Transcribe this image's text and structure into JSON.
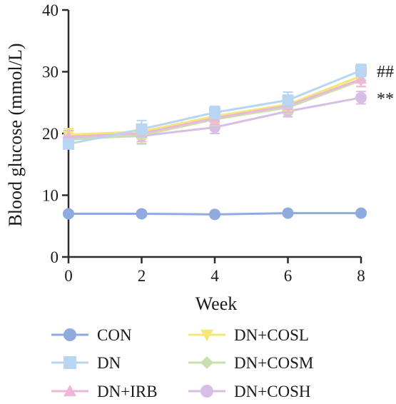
{
  "chart_data": {
    "type": "line",
    "xlabel": "Week",
    "ylabel": "Blood glucose (mmol/L)",
    "x": [
      0,
      2,
      4,
      6,
      8
    ],
    "xlim": [
      0,
      8
    ],
    "ylim": [
      0,
      40
    ],
    "xticks": [
      "0",
      "2",
      "4",
      "6",
      "8"
    ],
    "yticks": [
      "0",
      "10",
      "20",
      "30",
      "40"
    ],
    "grid": false,
    "legend_position": "bottom",
    "series": [
      {
        "name": "CON",
        "color": "#8EAADF",
        "marker": "circle",
        "values": [
          7.0,
          7.0,
          6.9,
          7.1,
          7.1
        ],
        "errors": [
          0.4,
          0.3,
          0.3,
          0.4,
          0.3
        ]
      },
      {
        "name": "DN",
        "color": "#B8D5F2",
        "marker": "square",
        "values": [
          18.3,
          20.7,
          23.4,
          25.4,
          30.2
        ],
        "errors": [
          0.8,
          1.4,
          1.0,
          1.3,
          1.0
        ]
      },
      {
        "name": "DN+IRB",
        "color": "#EDB8D8",
        "marker": "triangle-up",
        "values": [
          19.5,
          20.0,
          22.5,
          24.5,
          28.8
        ],
        "errors": [
          1.0,
          1.3,
          1.0,
          1.0,
          1.2
        ]
      },
      {
        "name": "DN+COSL",
        "color": "#F2E875",
        "marker": "triangle-down",
        "values": [
          19.8,
          20.3,
          22.8,
          24.7,
          29.3
        ],
        "errors": [
          1.0,
          1.2,
          1.0,
          1.0,
          1.0
        ]
      },
      {
        "name": "DN+COSM",
        "color": "#C6E0B0",
        "marker": "diamond",
        "values": [
          19.0,
          19.7,
          22.3,
          24.2,
          28.6
        ],
        "errors": [
          1.0,
          1.3,
          1.0,
          1.0,
          1.0
        ]
      },
      {
        "name": "DN+COSH",
        "color": "#D8BEE4",
        "marker": "circle",
        "values": [
          19.2,
          19.6,
          21.0,
          23.6,
          25.8
        ],
        "errors": [
          0.8,
          1.3,
          1.0,
          0.9,
          1.0
        ]
      }
    ],
    "annotations": [
      {
        "text": "##",
        "series": "DN"
      },
      {
        "text": "**",
        "series": "DN+COSH"
      }
    ]
  }
}
